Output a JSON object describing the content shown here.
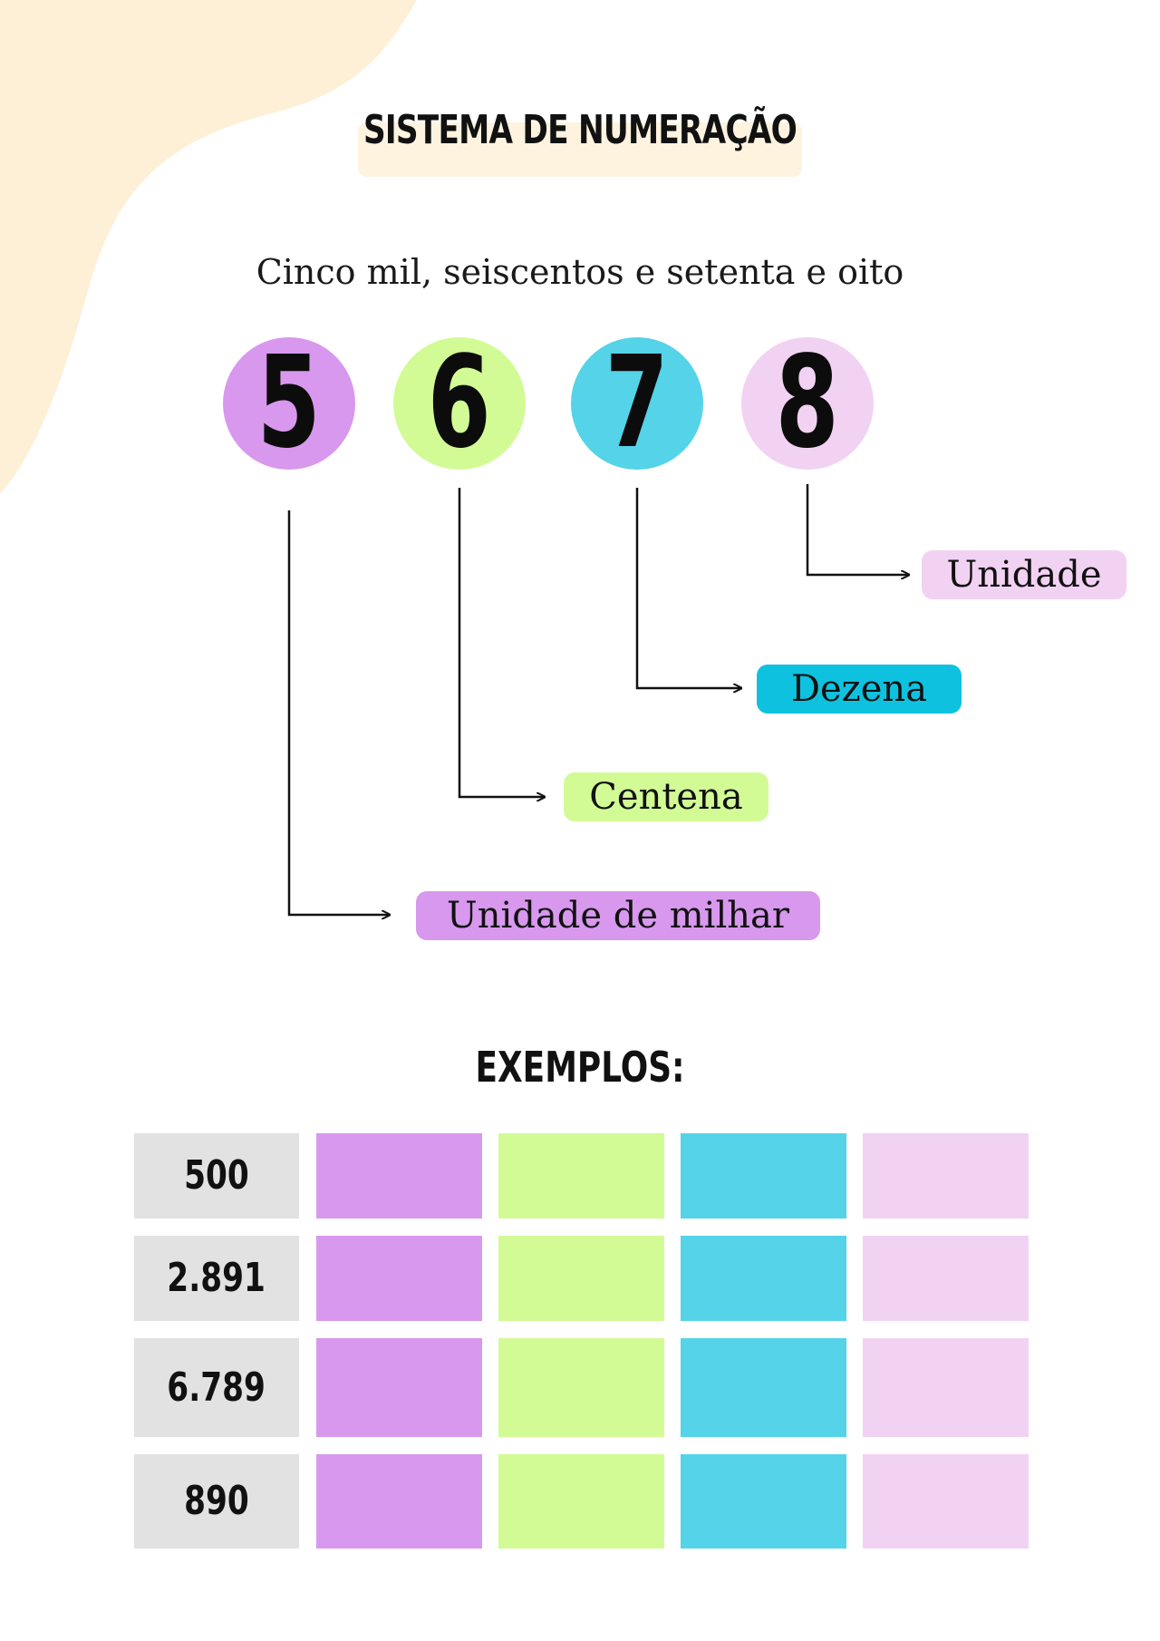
{
  "title": "SISTEMA DE NUMERAÇÃO",
  "phrase": "Cinco mil, seiscentos e setenta e oito",
  "digits": [
    "5",
    "6",
    "7",
    "8"
  ],
  "labels": {
    "unidade_milhar": "Unidade de milhar",
    "centena": "Centena",
    "dezena": "Dezena",
    "unidade": "Unidade"
  },
  "colors": {
    "milhar": "#d898ee",
    "centena": "#d2fb96",
    "dezena": "#55d3e8",
    "unidade": "#f2d2f2",
    "dezena_label": "#0ec2df",
    "blob": "#fdf0d6",
    "number_cell": "#e2e2e2"
  },
  "examples_title": "EXEMPLOS:",
  "examples": [
    "500",
    "2.891",
    "6.789",
    "890"
  ]
}
